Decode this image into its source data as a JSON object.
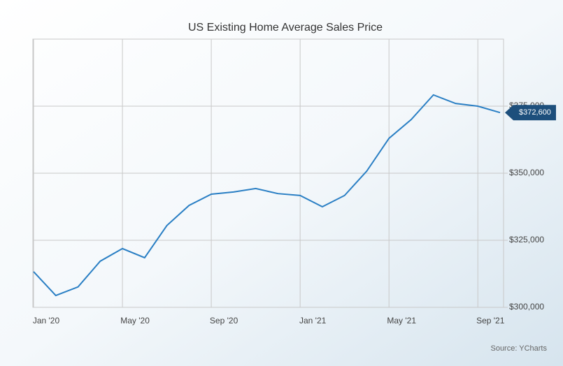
{
  "chart_data": {
    "type": "line",
    "title": "US Existing Home Average Sales Price",
    "source": "Source: YCharts",
    "x": [
      "2020-01",
      "2020-02",
      "2020-03",
      "2020-04",
      "2020-05",
      "2020-06",
      "2020-07",
      "2020-08",
      "2020-09",
      "2020-10",
      "2020-11",
      "2020-12",
      "2021-01",
      "2021-02",
      "2021-03",
      "2021-04",
      "2021-05",
      "2021-06",
      "2021-07",
      "2021-08",
      "2021-09",
      "2021-10"
    ],
    "series": [
      {
        "name": "US Existing Home Average Sales Price",
        "color": "#2a7fc4",
        "values": [
          313300,
          304400,
          307600,
          317200,
          321900,
          318500,
          330500,
          338000,
          342200,
          343000,
          344300,
          342400,
          341700,
          337500,
          341700,
          350800,
          363000,
          370000,
          379200,
          376000,
          375000,
          372600
        ],
        "value_labels": [
          null,
          null,
          null,
          null,
          null,
          null,
          null,
          null,
          null,
          null,
          null,
          null,
          null,
          null,
          null,
          null,
          null,
          null,
          null,
          null,
          null,
          "$372,600"
        ]
      }
    ],
    "xticks": [
      {
        "value": "2020-01",
        "label": "Jan '20"
      },
      {
        "value": "2020-05",
        "label": "May '20"
      },
      {
        "value": "2020-09",
        "label": "Sep '20"
      },
      {
        "value": "2021-01",
        "label": "Jan '21"
      },
      {
        "value": "2021-05",
        "label": "May '21"
      },
      {
        "value": "2021-09",
        "label": "Sep '21"
      }
    ],
    "ylim": [
      300000,
      400000
    ],
    "yticks": [
      {
        "value": 300000,
        "label": "$300,000"
      },
      {
        "value": 325000,
        "label": "$325,000"
      },
      {
        "value": 350000,
        "label": "$350,000"
      },
      {
        "value": 375000,
        "label": "$375,000"
      }
    ],
    "grid": true
  }
}
